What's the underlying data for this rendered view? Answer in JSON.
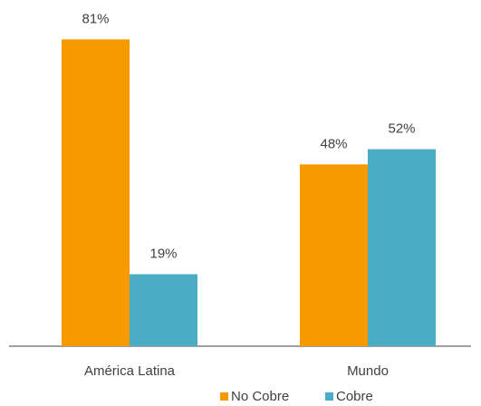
{
  "chart_data": {
    "type": "bar",
    "categories": [
      "América Latina",
      "Mundo"
    ],
    "series": [
      {
        "name": "No Cobre",
        "color": "#f79a00",
        "values": [
          81,
          48
        ],
        "value_labels": [
          "81%",
          "48%"
        ]
      },
      {
        "name": "Cobre",
        "color": "#4bacc6",
        "values": [
          19,
          52
        ],
        "value_labels": [
          "19%",
          "52%"
        ]
      }
    ],
    "legend": "bottom"
  }
}
